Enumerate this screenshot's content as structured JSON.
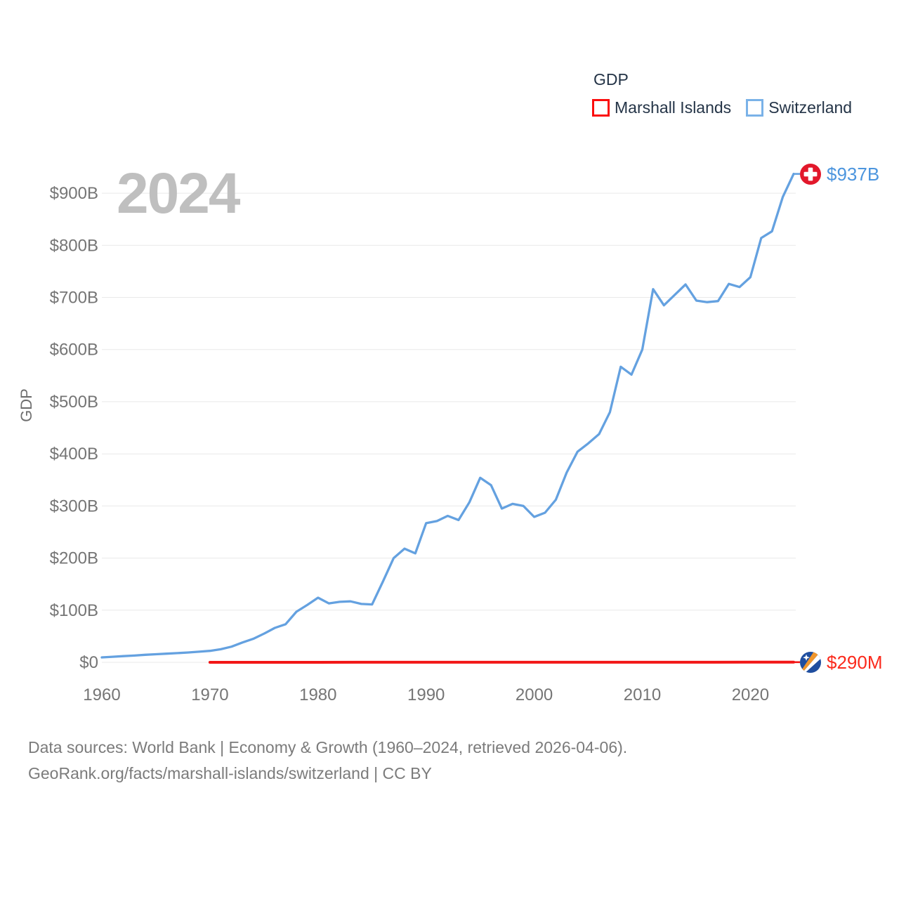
{
  "legend": {
    "title": "GDP",
    "items": [
      {
        "label": "Marshall Islands",
        "color": "#fb0d0d"
      },
      {
        "label": "Switzerland",
        "color": "#7ab2e8"
      }
    ]
  },
  "watermark": "2024",
  "source": {
    "line1": "Data sources: World Bank | Economy & Growth (1960–2024, retrieved 2026-04-06).",
    "line2": "GeoRank.org/facts/marshall-islands/switzerland | CC BY"
  },
  "chart_data": {
    "type": "line",
    "title": "GDP",
    "xlabel": "",
    "ylabel": "GDP",
    "unit": "US$ billions",
    "xlim": [
      1960,
      2024
    ],
    "ylim_billions": [
      0,
      950
    ],
    "grid": true,
    "legend_position": "top-right",
    "x_ticks": [
      1960,
      1970,
      1980,
      1990,
      2000,
      2010,
      2020
    ],
    "y_ticks": [
      {
        "value": 0,
        "label": "$0"
      },
      {
        "value": 100,
        "label": "$100B"
      },
      {
        "value": 200,
        "label": "$200B"
      },
      {
        "value": 300,
        "label": "$300B"
      },
      {
        "value": 400,
        "label": "$400B"
      },
      {
        "value": 500,
        "label": "$500B"
      },
      {
        "value": 600,
        "label": "$600B"
      },
      {
        "value": 700,
        "label": "$700B"
      },
      {
        "value": 800,
        "label": "$800B"
      },
      {
        "value": 900,
        "label": "$900B"
      }
    ],
    "series": [
      {
        "name": "Marshall Islands",
        "color": "#f21717",
        "end_label": "$290M",
        "end_label_color": "#fb2a1c",
        "flag": "marshall-islands",
        "x": [
          1970,
          1975,
          1980,
          1985,
          1990,
          1995,
          2000,
          2005,
          2010,
          2015,
          2020,
          2024
        ],
        "values_billions": [
          0.01,
          0.02,
          0.04,
          0.07,
          0.08,
          0.11,
          0.12,
          0.15,
          0.17,
          0.19,
          0.24,
          0.29
        ]
      },
      {
        "name": "Switzerland",
        "color": "#64a1e0",
        "end_label": "$937B",
        "end_label_color": "#4c95de",
        "flag": "switzerland",
        "x": [
          1960,
          1961,
          1962,
          1963,
          1964,
          1965,
          1966,
          1967,
          1968,
          1969,
          1970,
          1971,
          1972,
          1973,
          1974,
          1975,
          1976,
          1977,
          1978,
          1979,
          1980,
          1981,
          1982,
          1983,
          1984,
          1985,
          1986,
          1987,
          1988,
          1989,
          1990,
          1991,
          1992,
          1993,
          1994,
          1995,
          1996,
          1997,
          1998,
          1999,
          2000,
          2001,
          2002,
          2003,
          2004,
          2005,
          2006,
          2007,
          2008,
          2009,
          2010,
          2011,
          2012,
          2013,
          2014,
          2015,
          2016,
          2017,
          2018,
          2019,
          2020,
          2021,
          2022,
          2023,
          2024
        ],
        "values_billions": [
          9.5,
          10.7,
          11.9,
          13.0,
          14.4,
          15.5,
          16.6,
          17.7,
          18.9,
          20.3,
          22,
          25,
          30,
          38,
          45,
          55,
          66,
          73,
          97,
          110,
          124,
          113,
          116,
          117,
          112,
          111,
          155,
          200,
          218,
          209,
          267,
          271,
          281,
          273,
          307,
          354,
          340,
          295,
          304,
          300,
          279,
          287,
          312,
          364,
          404,
          420,
          438,
          480,
          567,
          552,
          600,
          716,
          685,
          705,
          725,
          694,
          691,
          693,
          726,
          720,
          739,
          814,
          827,
          893,
          937
        ]
      }
    ]
  }
}
